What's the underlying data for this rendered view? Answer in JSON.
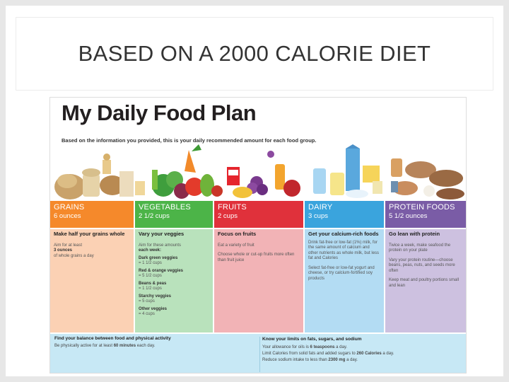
{
  "slide": {
    "title": "BASED ON A 2000 CALORIE DIET"
  },
  "poster": {
    "title": "My Daily Food Plan",
    "subtitle": "Based on the information you provided, this is your daily recommended amount for each food group.",
    "colors": {
      "grains": "#f5892b",
      "vegetables": "#4cb448",
      "fruits": "#e0313b",
      "dairy": "#3aa4dd",
      "protein": "#7a5ca6"
    },
    "groups": {
      "grains": {
        "name": "GRAINS",
        "amount": "6 ounces"
      },
      "vegetables": {
        "name": "VEGETABLES",
        "amount": "2 1/2 cups"
      },
      "fruits": {
        "name": "FRUITS",
        "amount": "2 cups"
      },
      "dairy": {
        "name": "DAIRY",
        "amount": "3 cups"
      },
      "protein": {
        "name": "PROTEIN FOODS",
        "amount": "5 1/2 ounces"
      }
    },
    "grains_tips": {
      "heading": "Make half your grains whole",
      "line1": "Aim for at least",
      "line2": "3 ounces",
      "line3": "of whole grains a day"
    },
    "vegetables_tips": {
      "heading": "Vary your veggies",
      "intro1": "Aim for these amounts",
      "intro2": "each week:",
      "items": [
        {
          "label": "Dark green veggies",
          "amount": "= 1 1/2 cups"
        },
        {
          "label": "Red & orange veggies",
          "amount": "= 5 1/2 cups"
        },
        {
          "label": "Beans & peas",
          "amount": "= 1 1/2 cups"
        },
        {
          "label": "Starchy veggies",
          "amount": "= 5 cups"
        },
        {
          "label": "Other veggies",
          "amount": "= 4 cups"
        }
      ]
    },
    "fruits_tips": {
      "heading": "Focus on fruits",
      "p1": "Eat a variety of fruit",
      "p2": "Choose whole or cut-up fruits more often than fruit juice"
    },
    "dairy_tips": {
      "heading": "Get your calcium-rich foods",
      "p1": "Drink fat-free or low-fat (1%) milk, for the same amount of calcium and other nutrients as whole milk, but less fat and Calories",
      "p2": "Select fat-free or low-fat yogurt and cheese, or try calcium-fortified soy products"
    },
    "protein_tips": {
      "heading": "Go lean with protein",
      "p1": "Twice a week, make seafood the protein on your plate",
      "p2": "Vary your protein routine—choose beans, peas, nuts, and seeds more often",
      "p3": "Keep meat and poultry portions small and lean"
    },
    "activity": {
      "heading": "Find your balance between food and physical activity",
      "text_pre": "Be physically active for at least ",
      "text_bold": "60 minutes",
      "text_post": " each day."
    },
    "limits": {
      "heading": "Know your limits on fats, sugars, and sodium",
      "l1_pre": "Your allowance for oils is ",
      "l1_bold": "6 teaspoons",
      "l1_post": " a day.",
      "l2_pre": "Limit Calories from solid fats and added sugars to ",
      "l2_bold": "260 Calories",
      "l2_post": " a day.",
      "l3_pre": "Reduce sodium intake to less than ",
      "l3_bold": "2300 mg",
      "l3_post": " a day."
    }
  }
}
